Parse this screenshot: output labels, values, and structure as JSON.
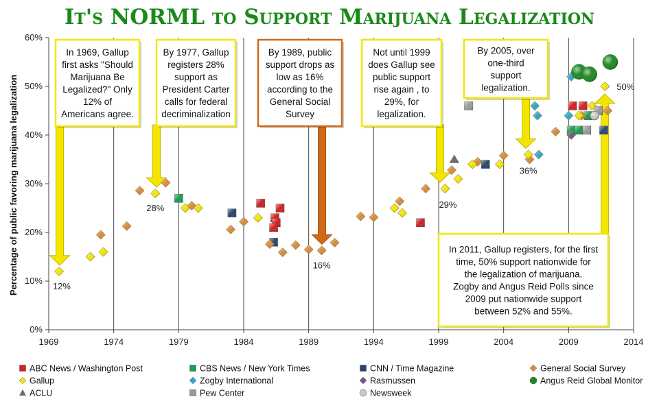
{
  "chart_data": {
    "type": "scatter",
    "title": "It's NORML to Support Marijuana Legalization",
    "ylabel": "Percentage of public favoring marijuana legalization",
    "xlim": [
      1969,
      2014
    ],
    "ylim": [
      0,
      60
    ],
    "xticks": [
      "1969",
      "1974",
      "1979",
      "1984",
      "1989",
      "1994",
      "1999",
      "2004",
      "2009",
      "2014"
    ],
    "yticks": [
      "0%",
      "10%",
      "20%",
      "30%",
      "40%",
      "50%",
      "60%"
    ],
    "grid": "vertical lines at x ticks",
    "series": [
      {
        "name": "ABC News / Washington Post",
        "color": "#d42020",
        "marker": "square",
        "points": [
          [
            1985.3,
            26
          ],
          [
            1986.4,
            23
          ],
          [
            1986.5,
            22
          ],
          [
            1986.3,
            21
          ],
          [
            1986.8,
            25
          ],
          [
            1997.6,
            22
          ],
          [
            2009.3,
            46
          ],
          [
            2010.1,
            46
          ]
        ]
      },
      {
        "name": "CBS News / New York Times",
        "color": "#1f9a50",
        "marker": "square",
        "points": [
          [
            1979,
            27
          ],
          [
            2009.2,
            41
          ],
          [
            2009.8,
            41
          ],
          [
            2010.5,
            44
          ]
        ]
      },
      {
        "name": "CNN / Time Magazine",
        "color": "#26466e",
        "marker": "square",
        "points": [
          [
            1983.1,
            24
          ],
          [
            1986.3,
            18
          ],
          [
            2002.6,
            34
          ],
          [
            2011.7,
            41
          ]
        ]
      },
      {
        "name": "General Social Survey",
        "color": "#d98a3e",
        "marker": "diamond",
        "points": [
          [
            1973,
            19.5
          ],
          [
            1975,
            21.3
          ],
          [
            1976,
            28.6
          ],
          [
            1978,
            30.2
          ],
          [
            1980,
            25.5
          ],
          [
            1983,
            20.6
          ],
          [
            1984,
            22.2
          ],
          [
            1986,
            17.6
          ],
          [
            1987,
            15.9
          ],
          [
            1988,
            17.4
          ],
          [
            1989,
            16.5
          ],
          [
            1990,
            16.3
          ],
          [
            1991,
            17.9
          ],
          [
            1993,
            23.3
          ],
          [
            1994,
            23.1
          ],
          [
            1996,
            26.4
          ],
          [
            1998,
            29
          ],
          [
            2000,
            32.8
          ],
          [
            2002,
            34.5
          ],
          [
            2004,
            35.8
          ],
          [
            2006,
            35
          ],
          [
            2008,
            40.7
          ],
          [
            2010,
            44
          ],
          [
            2012,
            45
          ]
        ]
      },
      {
        "name": "Gallup",
        "color": "#f2e600",
        "marker": "diamond",
        "points": [
          [
            1969.8,
            12
          ],
          [
            1972.2,
            15
          ],
          [
            1973.2,
            16
          ],
          [
            1977.2,
            28
          ],
          [
            1979.5,
            25
          ],
          [
            1980.5,
            25
          ],
          [
            1985.1,
            23
          ],
          [
            1995.6,
            25
          ],
          [
            1996.2,
            24
          ],
          [
            1999.5,
            29
          ],
          [
            2000.5,
            31
          ],
          [
            2001.6,
            34
          ],
          [
            2003.7,
            34
          ],
          [
            2005.9,
            36
          ],
          [
            2009.8,
            44
          ],
          [
            2010.8,
            46
          ],
          [
            2011.8,
            50
          ]
        ]
      },
      {
        "name": "Zogby International",
        "color": "#2aa7d0",
        "marker": "diamond",
        "points": [
          [
            2006.4,
            46
          ],
          [
            2006.6,
            44
          ],
          [
            2006.7,
            36
          ],
          [
            2009,
            44
          ],
          [
            2009.2,
            52
          ]
        ]
      },
      {
        "name": "Rasmussen",
        "color": "#6a5a8a",
        "marker": "diamond",
        "points": [
          [
            2009.2,
            40
          ]
        ]
      },
      {
        "name": "Angus Reid Global Monitor",
        "color": "#1e8a22",
        "marker": "circle",
        "points": [
          [
            2009.8,
            53
          ],
          [
            2010.6,
            52.5
          ],
          [
            2012.2,
            55
          ]
        ]
      },
      {
        "name": "ACLU",
        "color": "#6b6b6b",
        "marker": "triangle",
        "points": [
          [
            2000.2,
            35
          ]
        ]
      },
      {
        "name": "Pew Center",
        "color": "#9a9a9a",
        "marker": "square",
        "points": [
          [
            2001.3,
            46
          ],
          [
            2010.4,
            41
          ],
          [
            2011.3,
            45
          ]
        ]
      },
      {
        "name": "Newsweek",
        "color": "#c8c8c8",
        "marker": "circle",
        "points": [
          [
            2011,
            44
          ]
        ]
      }
    ],
    "data_labels": [
      {
        "text": "12%",
        "x": 1970,
        "y": 12
      },
      {
        "text": "28%",
        "x": 1977.2,
        "y": 28
      },
      {
        "text": "16%",
        "x": 1990,
        "y": 16.3
      },
      {
        "text": "29%",
        "x": 1999.5,
        "y": 29
      },
      {
        "text": "36%",
        "x": 2005.9,
        "y": 36
      },
      {
        "text": "50%",
        "x": 2011.8,
        "y": 50
      }
    ],
    "annotations": [
      {
        "lines": [
          "In 1969, Gallup",
          "first asks \"Should",
          "Marijuana Be",
          "Legalized?\"  Only",
          "12% of",
          "Americans agree."
        ],
        "border": "#f2e600",
        "arrow_color": "#f2e600",
        "point": [
          1969.8,
          12
        ]
      },
      {
        "lines": [
          "By 1977, Gallup",
          "registers 28%",
          "support as",
          "President Carter",
          "calls for federal",
          "decriminalization"
        ],
        "border": "#f2e600",
        "arrow_color": "#f2e600",
        "point": [
          1977.2,
          28
        ]
      },
      {
        "lines": [
          "By 1989, public",
          "support drops as",
          "low as 16%",
          "according to the",
          "General Social",
          "Survey"
        ],
        "border": "#d06a18",
        "arrow_color": "#d06a18",
        "point": [
          1990,
          16.3
        ]
      },
      {
        "lines": [
          "Not until 1999",
          "does Gallup see",
          "public support",
          "rise again , to",
          "29%, for",
          "legalization."
        ],
        "border": "#f2e600",
        "arrow_color": "#f2e600",
        "point": [
          1999.5,
          29
        ]
      },
      {
        "lines": [
          "By 2005, over",
          "one-third",
          "support",
          "legalization."
        ],
        "border": "#f2e600",
        "arrow_color": "#f2e600",
        "point": [
          2005.9,
          36
        ]
      },
      {
        "lines": [
          "In 2011, Gallup registers, for the first",
          "time, 50% support nationwide for",
          "the legalization of marijuana.",
          "Zogby and Angus Reid Polls since",
          "2009 put nationwide support",
          "between 52% and 55%."
        ],
        "border": "#f2e600",
        "arrow_color": "#f2e600",
        "point": [
          2011.8,
          50
        ]
      }
    ],
    "legend_position": "bottom",
    "legend_order": [
      "ABC News / Washington Post",
      "CBS News / New York Times",
      "CNN / Time Magazine",
      "General Social Survey",
      "Gallup",
      "Zogby International",
      "Rasmussen",
      "Angus Reid Global Monitor",
      "ACLU",
      "Pew Center",
      "Newsweek"
    ]
  }
}
